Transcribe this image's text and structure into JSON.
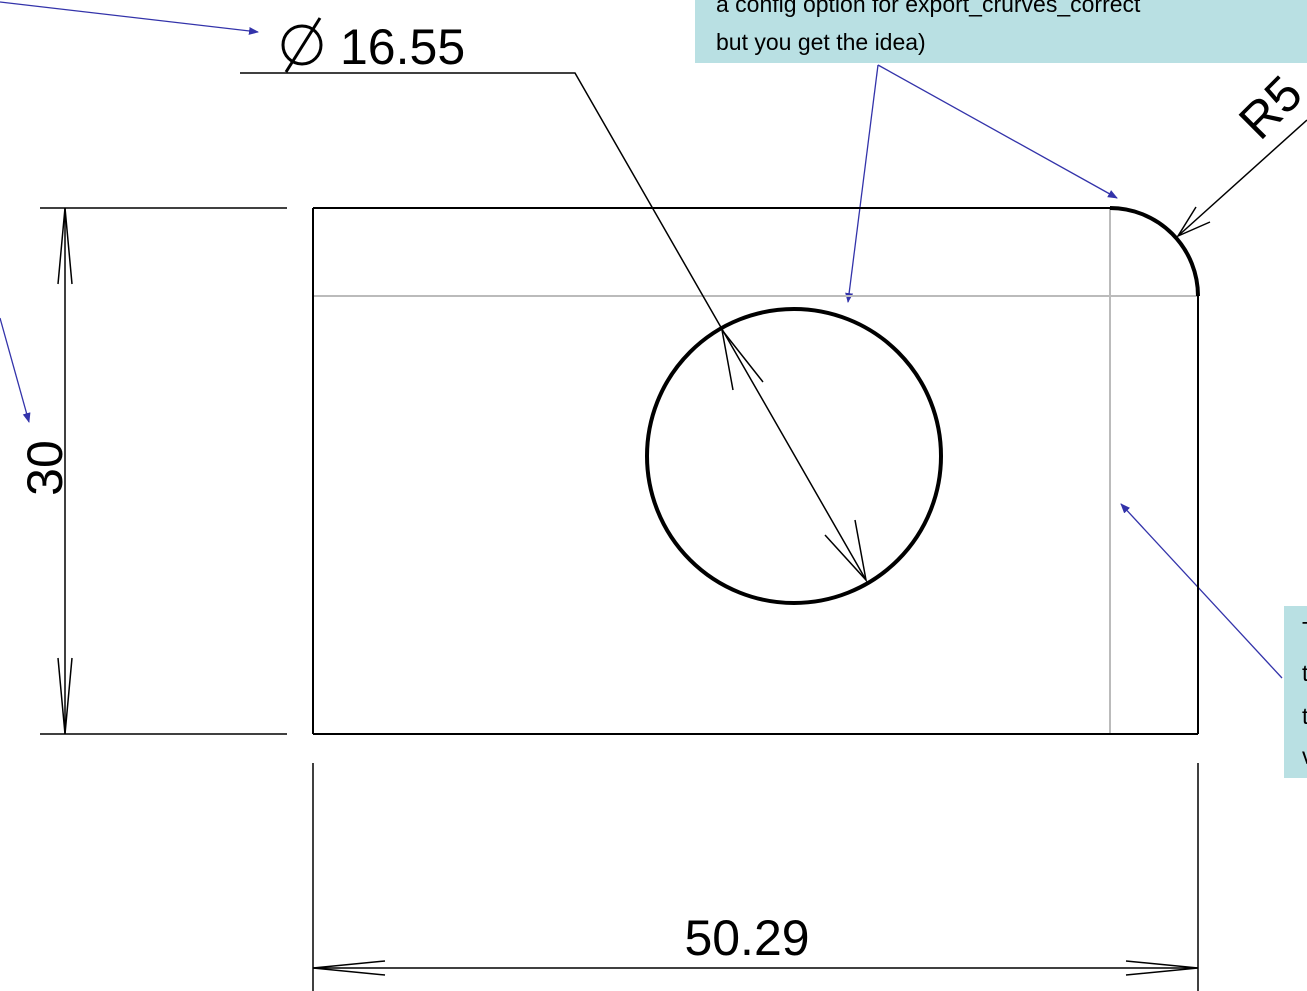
{
  "dimensions": {
    "diameter": "16.55",
    "radius": "R5",
    "height": "30",
    "width": "50.29"
  },
  "callouts": {
    "top": [
      "a config option for export_crurves_correct",
      "but you get the idea)"
    ],
    "right": [
      "T",
      "t",
      "t",
      "v"
    ]
  }
}
